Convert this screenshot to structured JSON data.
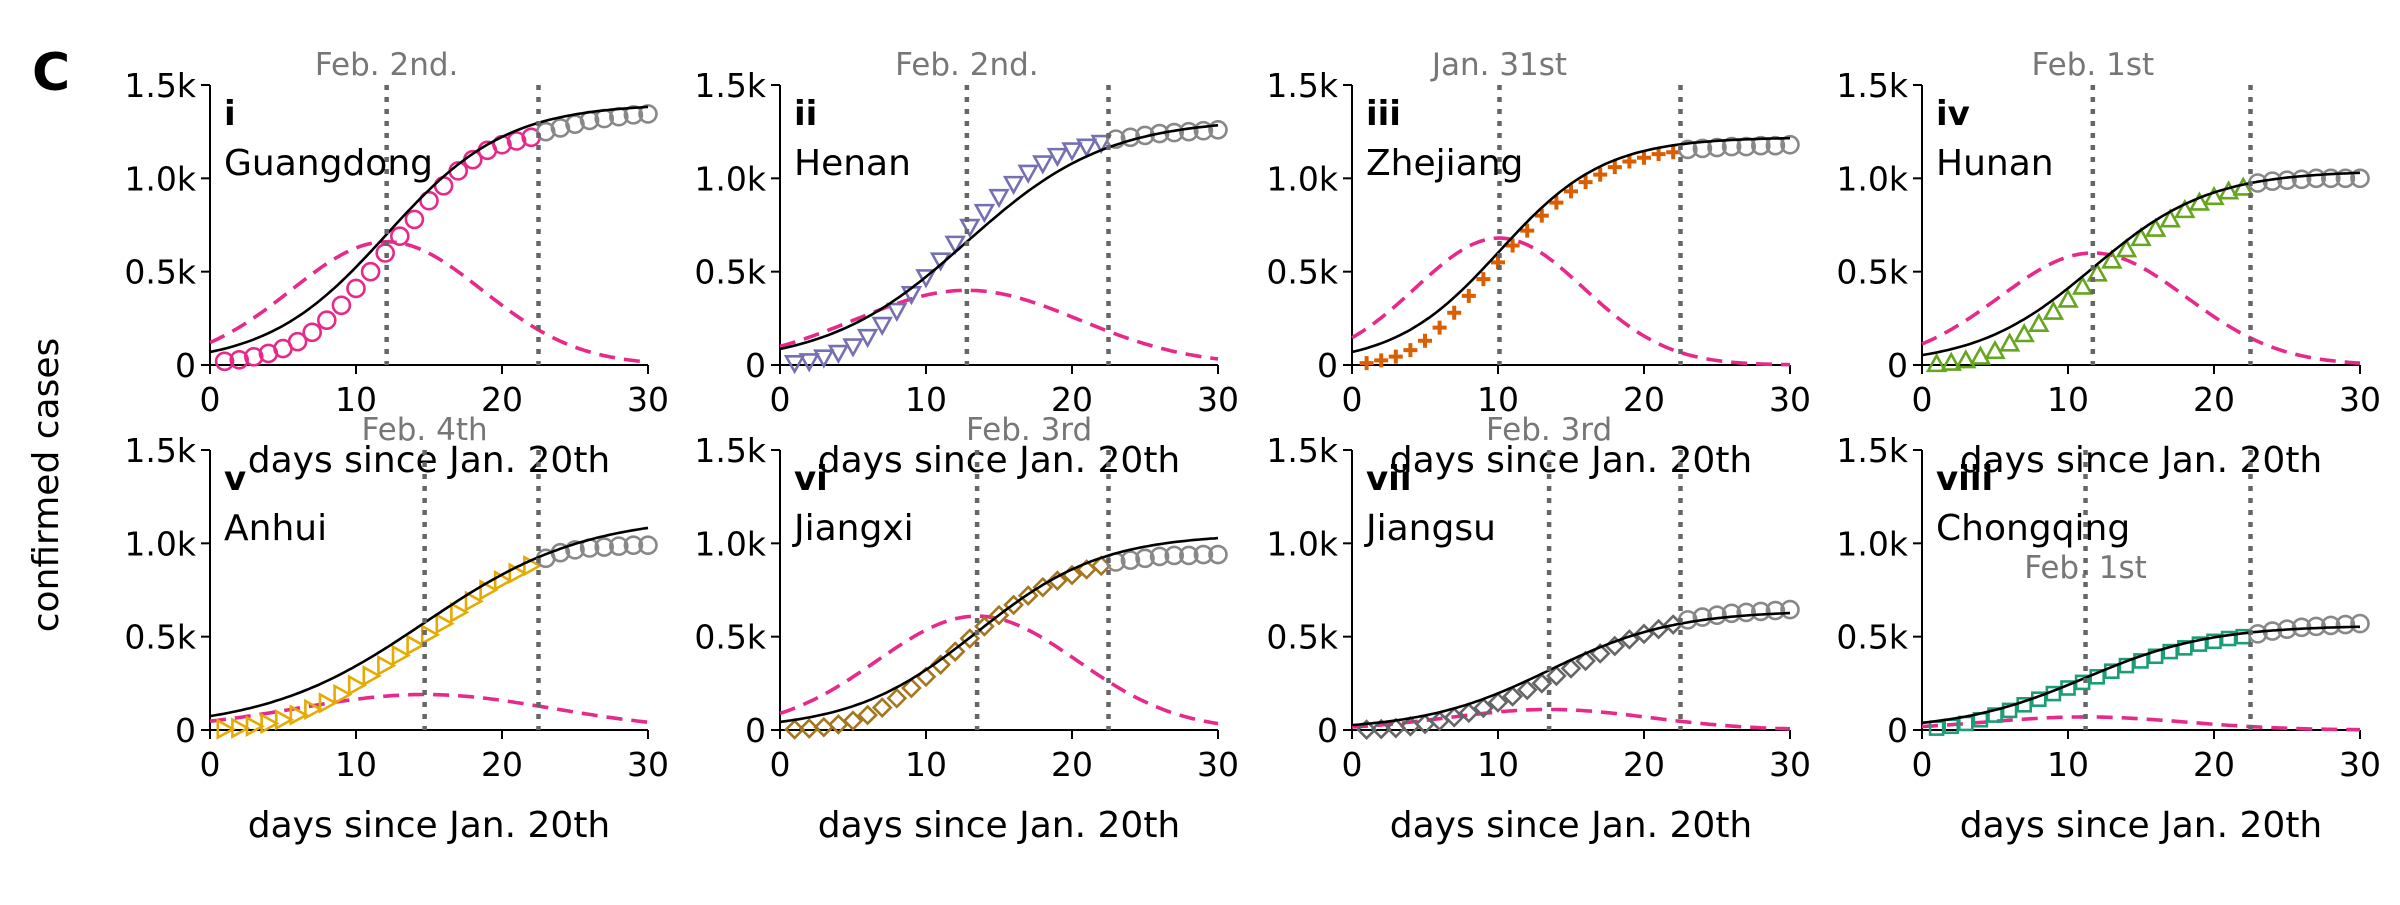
{
  "figure_label": "C",
  "shared_ylabel": "confirmed cases",
  "chart_data": [
    {
      "type": "line",
      "numeral": "i",
      "region": "Guangdong",
      "annotation": "Feb. 2nd.",
      "xlabel": "days since Jan. 20th",
      "ylabel": "",
      "xlim": [
        0,
        30
      ],
      "ylim": [
        0,
        1500
      ],
      "xticks": [
        "0",
        "10",
        "20",
        "30"
      ],
      "yticks": [
        "0",
        "0.5k",
        "1.0k",
        "1.5k"
      ],
      "marker": "circle",
      "color": "#e7298a",
      "vlines": [
        12.1,
        22.5
      ],
      "fit": {
        "K": 1400,
        "t0": 12.1,
        "s": 4.1
      },
      "incidence_peak": 660,
      "obs_x": [
        1,
        2,
        3,
        4,
        5,
        6,
        7,
        8,
        9,
        10,
        11,
        12,
        13,
        14,
        15,
        16,
        17,
        18,
        19,
        20,
        21,
        22
      ],
      "obs_y": [
        20,
        28,
        44,
        62,
        88,
        125,
        175,
        240,
        320,
        410,
        500,
        600,
        690,
        780,
        880,
        960,
        1040,
        1100,
        1150,
        1180,
        1200,
        1220
      ],
      "post_x": [
        23,
        24,
        25,
        26,
        27,
        28,
        29,
        30
      ],
      "post_y": [
        1250,
        1270,
        1290,
        1310,
        1320,
        1330,
        1340,
        1345
      ]
    },
    {
      "type": "line",
      "numeral": "ii",
      "region": "Henan",
      "annotation": "Feb. 2nd.",
      "xlabel": "days since Jan. 20th",
      "ylabel": "",
      "xlim": [
        0,
        30
      ],
      "ylim": [
        0,
        1500
      ],
      "xticks": [
        "0",
        "10",
        "20",
        "30"
      ],
      "yticks": [
        "0",
        "0.5k",
        "1.0k",
        "1.5k"
      ],
      "marker": "triangle-down",
      "color": "#7570b3",
      "vlines": [
        12.8,
        22.5
      ],
      "fit": {
        "K": 1320,
        "t0": 12.8,
        "s": 4.8
      },
      "incidence_peak": 400,
      "obs_x": [
        1,
        2,
        3,
        4,
        5,
        6,
        7,
        8,
        9,
        10,
        11,
        12,
        13,
        14,
        15,
        16,
        17,
        18,
        19,
        20,
        21,
        22
      ],
      "obs_y": [
        10,
        20,
        40,
        65,
        100,
        150,
        215,
        290,
        380,
        470,
        560,
        650,
        740,
        820,
        900,
        970,
        1030,
        1080,
        1120,
        1150,
        1170,
        1190
      ],
      "post_x": [
        23,
        24,
        25,
        26,
        27,
        28,
        29,
        30
      ],
      "post_y": [
        1210,
        1220,
        1230,
        1240,
        1245,
        1250,
        1255,
        1260
      ]
    },
    {
      "type": "line",
      "numeral": "iii",
      "region": "Zhejiang",
      "annotation": "Jan. 31st",
      "xlabel": "days since Jan. 20th",
      "ylabel": "",
      "xlim": [
        0,
        30
      ],
      "ylim": [
        0,
        1500
      ],
      "xticks": [
        "0",
        "10",
        "20",
        "30"
      ],
      "yticks": [
        "0",
        "0.5k",
        "1.0k",
        "1.5k"
      ],
      "marker": "plus",
      "color": "#d95f02",
      "vlines": [
        10.1,
        22.5
      ],
      "fit": {
        "K": 1220,
        "t0": 10.1,
        "s": 3.6
      },
      "incidence_peak": 680,
      "obs_x": [
        1,
        2,
        3,
        4,
        5,
        6,
        7,
        8,
        9,
        10,
        11,
        12,
        13,
        14,
        15,
        16,
        17,
        18,
        19,
        20,
        21,
        22
      ],
      "obs_y": [
        10,
        25,
        45,
        80,
        130,
        200,
        280,
        370,
        460,
        550,
        640,
        720,
        800,
        870,
        930,
        980,
        1020,
        1060,
        1090,
        1110,
        1130,
        1140
      ],
      "post_x": [
        23,
        24,
        25,
        26,
        27,
        28,
        29,
        30
      ],
      "post_y": [
        1155,
        1160,
        1165,
        1170,
        1170,
        1175,
        1175,
        1180
      ]
    },
    {
      "type": "line",
      "numeral": "iv",
      "region": "Hunan",
      "annotation": "Feb. 1st",
      "xlabel": "days since Jan. 20th",
      "ylabel": "",
      "xlim": [
        0,
        30
      ],
      "ylim": [
        0,
        1500
      ],
      "xticks": [
        "0",
        "10",
        "20",
        "30"
      ],
      "yticks": [
        "0",
        "0.5k",
        "1.0k",
        "1.5k"
      ],
      "marker": "triangle-up",
      "color": "#66a61e",
      "vlines": [
        11.7,
        22.5
      ],
      "fit": {
        "K": 1040,
        "t0": 11.7,
        "s": 4.0
      },
      "incidence_peak": 600,
      "obs_x": [
        1,
        2,
        3,
        4,
        5,
        6,
        7,
        8,
        9,
        10,
        11,
        12,
        13,
        14,
        15,
        16,
        17,
        18,
        19,
        20,
        21,
        22
      ],
      "obs_y": [
        5,
        12,
        25,
        45,
        75,
        115,
        165,
        220,
        285,
        350,
        420,
        490,
        560,
        620,
        680,
        730,
        780,
        830,
        870,
        900,
        930,
        950
      ],
      "post_x": [
        23,
        24,
        25,
        26,
        27,
        28,
        29,
        30
      ],
      "post_y": [
        975,
        985,
        990,
        995,
        1000,
        1000,
        1000,
        1000
      ]
    },
    {
      "type": "line",
      "numeral": "v",
      "region": "Anhui",
      "annotation": "Feb. 4th",
      "xlabel": "days since Jan. 20th",
      "ylabel": "",
      "xlim": [
        0,
        30
      ],
      "ylim": [
        0,
        1500
      ],
      "xticks": [
        "0",
        "10",
        "20",
        "30"
      ],
      "yticks": [
        "0",
        "0.5k",
        "1.0k",
        "1.5k"
      ],
      "marker": "triangle-right",
      "color": "#e6ab02",
      "vlines": [
        14.7,
        22.5
      ],
      "fit": {
        "K": 1150,
        "t0": 14.7,
        "s": 5.5
      },
      "incidence_peak": 190,
      "obs_x": [
        1,
        2,
        3,
        4,
        5,
        6,
        7,
        8,
        9,
        10,
        11,
        12,
        13,
        14,
        15,
        16,
        17,
        18,
        19,
        20,
        21,
        22
      ],
      "obs_y": [
        5,
        10,
        20,
        35,
        55,
        80,
        110,
        145,
        190,
        240,
        290,
        345,
        400,
        455,
        510,
        570,
        630,
        690,
        750,
        800,
        840,
        880
      ],
      "post_x": [
        23,
        24,
        25,
        26,
        27,
        28,
        29,
        30
      ],
      "post_y": [
        920,
        950,
        965,
        975,
        980,
        985,
        990,
        990
      ]
    },
    {
      "type": "line",
      "numeral": "vi",
      "region": "Jiangxi",
      "annotation": "Feb. 3rd",
      "xlabel": "days since Jan. 20th",
      "ylabel": "",
      "xlim": [
        0,
        30
      ],
      "ylim": [
        0,
        1500
      ],
      "xticks": [
        "0",
        "10",
        "20",
        "30"
      ],
      "yticks": [
        "0",
        "0.5k",
        "1.0k",
        "1.5k"
      ],
      "marker": "diamond",
      "color": "#a6761d",
      "vlines": [
        13.5,
        22.5
      ],
      "fit": {
        "K": 1050,
        "t0": 13.5,
        "s": 4.3
      },
      "incidence_peak": 610,
      "obs_x": [
        1,
        2,
        3,
        4,
        5,
        6,
        7,
        8,
        9,
        10,
        11,
        12,
        13,
        14,
        15,
        16,
        17,
        18,
        19,
        20,
        21,
        22
      ],
      "obs_y": [
        3,
        8,
        15,
        30,
        50,
        80,
        120,
        170,
        225,
        285,
        350,
        420,
        490,
        555,
        615,
        670,
        720,
        765,
        800,
        830,
        860,
        880
      ],
      "post_x": [
        23,
        24,
        25,
        26,
        27,
        28,
        29,
        30
      ],
      "post_y": [
        900,
        910,
        920,
        930,
        935,
        935,
        940,
        940
      ]
    },
    {
      "type": "line",
      "numeral": "vii",
      "region": "Jiangsu",
      "annotation": "Feb. 3rd",
      "xlabel": "days since Jan. 20th",
      "ylabel": "",
      "xlim": [
        0,
        30
      ],
      "ylim": [
        0,
        1500
      ],
      "xticks": [
        "0",
        "10",
        "20",
        "30"
      ],
      "yticks": [
        "0",
        "0.5k",
        "1.0k",
        "1.5k"
      ],
      "marker": "diamond",
      "color": "#666666",
      "vlines": [
        13.5,
        22.5
      ],
      "fit": {
        "K": 640,
        "t0": 13.5,
        "s": 4.3
      },
      "incidence_peak": 110,
      "obs_x": [
        1,
        2,
        3,
        4,
        5,
        6,
        7,
        8,
        9,
        10,
        11,
        12,
        13,
        14,
        15,
        16,
        17,
        18,
        19,
        20,
        21,
        22
      ],
      "obs_y": [
        2,
        5,
        10,
        20,
        32,
        48,
        68,
        92,
        118,
        148,
        180,
        215,
        250,
        290,
        330,
        370,
        410,
        450,
        485,
        515,
        540,
        565
      ],
      "post_x": [
        23,
        24,
        25,
        26,
        27,
        28,
        29,
        30
      ],
      "post_y": [
        590,
        605,
        615,
        625,
        630,
        635,
        640,
        645
      ]
    },
    {
      "type": "line",
      "numeral": "viii",
      "region": "Chongqing",
      "annotation": "Feb. 1st",
      "xlabel": "days since Jan. 20th",
      "ylabel": "",
      "xlim": [
        0,
        30
      ],
      "ylim": [
        0,
        1500
      ],
      "xticks": [
        "0",
        "10",
        "20",
        "30"
      ],
      "yticks": [
        "0",
        "0.5k",
        "1.0k",
        "1.5k"
      ],
      "marker": "square",
      "color": "#1b9e77",
      "vlines": [
        11.2,
        22.5
      ],
      "fit": {
        "K": 560,
        "t0": 11.2,
        "s": 4.3
      },
      "incidence_peak": 70,
      "obs_x": [
        1,
        2,
        3,
        4,
        5,
        6,
        7,
        8,
        9,
        10,
        11,
        12,
        13,
        14,
        15,
        16,
        17,
        18,
        19,
        20,
        21,
        22
      ],
      "obs_y": [
        10,
        20,
        35,
        55,
        80,
        105,
        135,
        165,
        195,
        225,
        255,
        285,
        315,
        345,
        370,
        395,
        420,
        440,
        460,
        475,
        490,
        500
      ],
      "post_x": [
        23,
        24,
        25,
        26,
        27,
        28,
        29,
        30
      ],
      "post_y": [
        515,
        530,
        540,
        550,
        555,
        560,
        565,
        570
      ]
    }
  ],
  "colors": {
    "fit_line": "#000000",
    "incidence": "#e7298a",
    "post_window": "#888888",
    "vline": "#666666",
    "annotation": "#777777"
  }
}
